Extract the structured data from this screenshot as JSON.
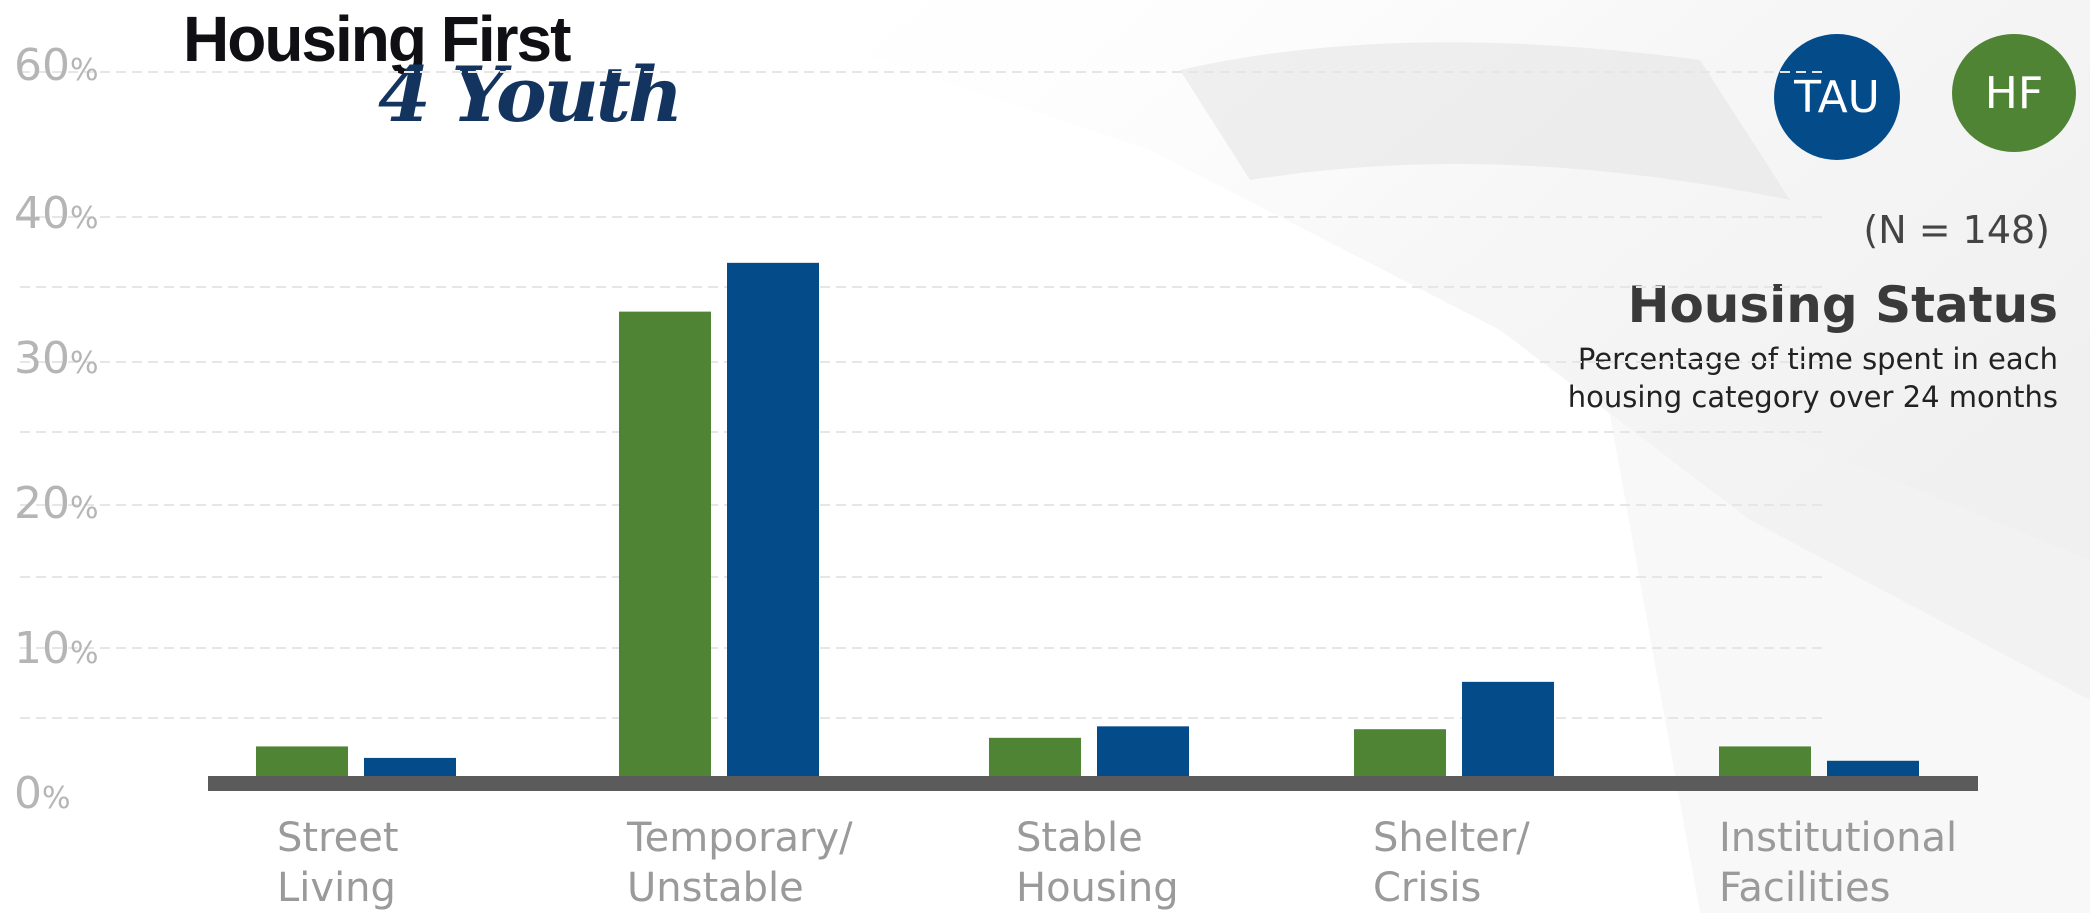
{
  "logo": {
    "line1": "Housing First",
    "line2": "4 Youth"
  },
  "legend": {
    "tau_label": "TAU",
    "hf_label": "HF"
  },
  "sample_size": "(N = 148)",
  "colors": {
    "green": "#4e8434",
    "blue": "#044b8a",
    "baseline": "#5b5b5b",
    "tick": "#b5b5b5",
    "category": "#9a9a9a",
    "grid": "#e6e6e6"
  },
  "chart_data": {
    "type": "bar",
    "title": "Housing Status",
    "subtitle": [
      "Percentage of time spent in each",
      "housing category over 24 months"
    ],
    "categories": [
      [
        "Street",
        "Living"
      ],
      [
        "Temporary/",
        "Unstable"
      ],
      [
        "Stable",
        "Housing"
      ],
      [
        "Shelter/",
        "Crisis"
      ],
      [
        "Institutional",
        "Facilities"
      ]
    ],
    "series": [
      {
        "color": "#4e8434",
        "values": [
          2.2,
          32.5,
          2.8,
          3.4,
          2.2
        ]
      },
      {
        "color": "#044b8a",
        "values": [
          1.4,
          35.9,
          3.6,
          6.7,
          1.2
        ]
      }
    ],
    "ticks": [
      {
        "value": 0,
        "label": "0%",
        "num": "0",
        "pct": "%"
      },
      {
        "value": 10,
        "label": "10%",
        "num": "10",
        "pct": "%"
      },
      {
        "value": 20,
        "label": "20%",
        "num": "20",
        "pct": "%"
      },
      {
        "value": 30,
        "label": "30%",
        "num": "30",
        "pct": "%"
      },
      {
        "value": 40,
        "label": "40%",
        "num": "40",
        "pct": "%"
      },
      {
        "value": 60,
        "label": "60%",
        "num": "60",
        "pct": "%"
      }
    ],
    "ylim": [
      0,
      50
    ],
    "grid": true,
    "legend": "top-right"
  }
}
